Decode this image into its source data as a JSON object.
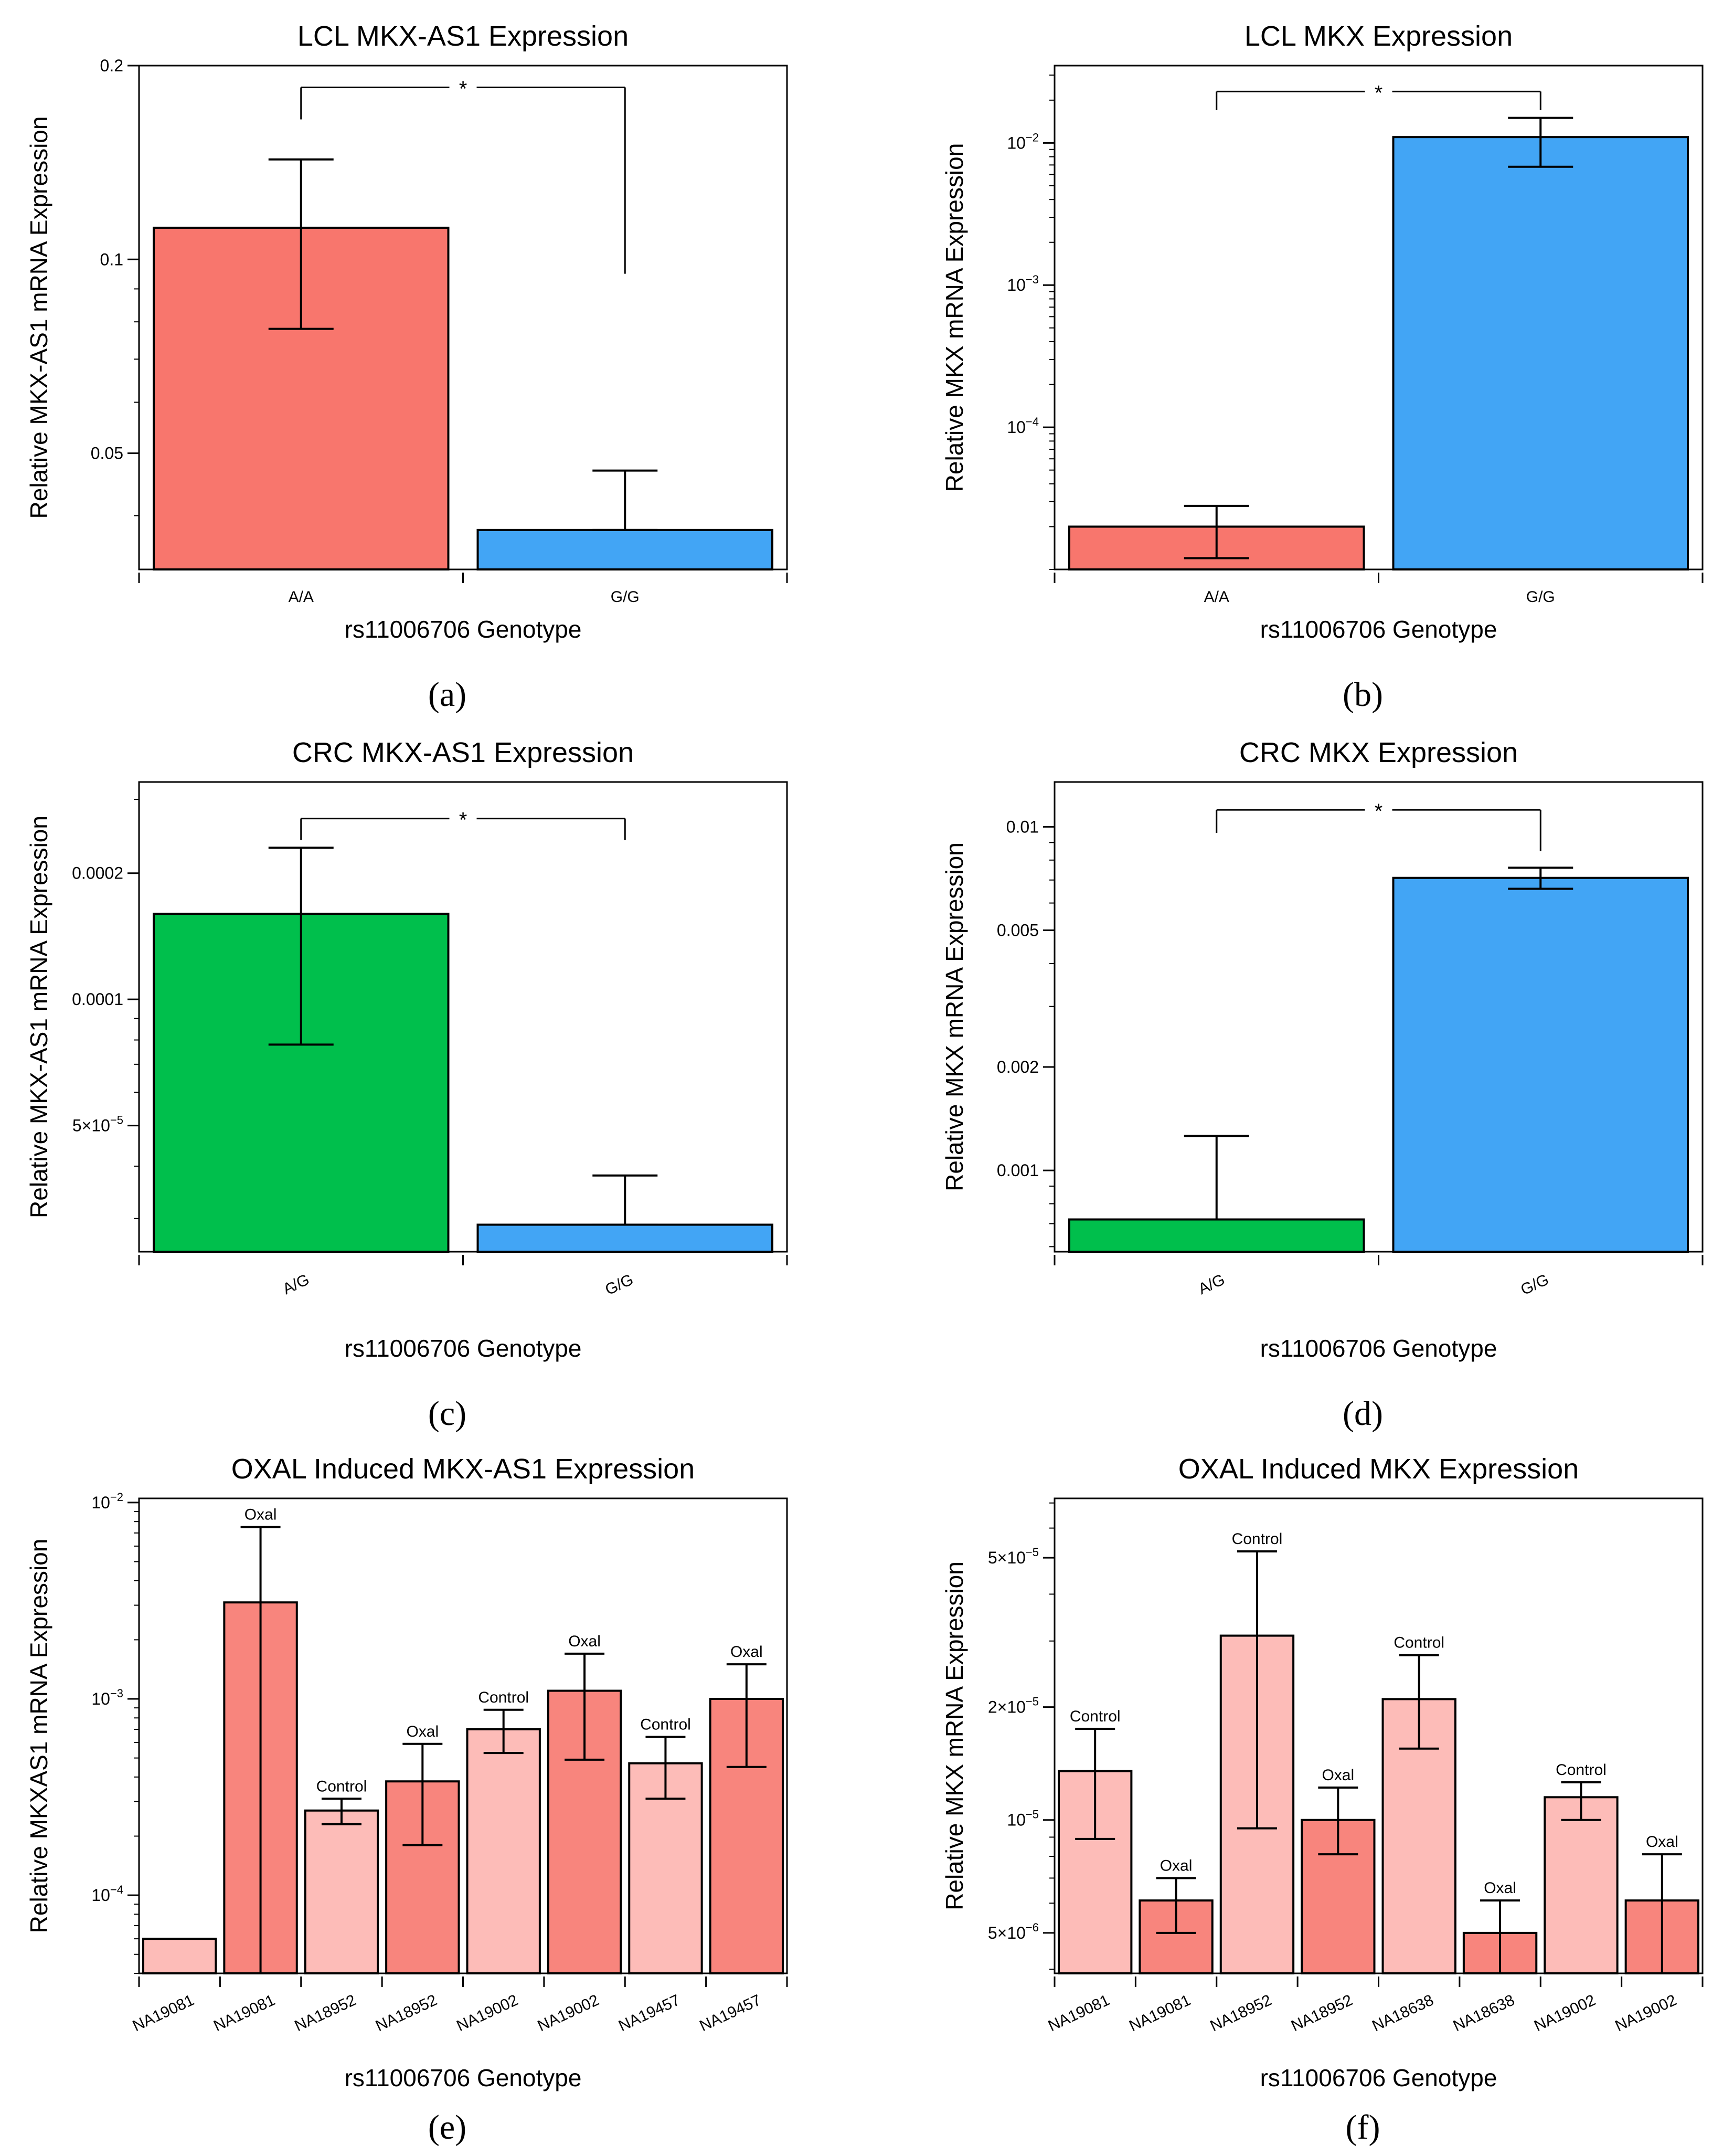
{
  "chart_data": [
    {
      "id": "a",
      "panel_label": "(a)",
      "type": "bar",
      "title": "LCL MKX-AS1 Expression",
      "ylabel": "Relative MKX-AS1 mRNA Expression",
      "xlabel": "rs11006706 Genotype",
      "yscale": "log",
      "ylim": [
        0.033,
        0.2
      ],
      "yticks": [
        {
          "v": 0.05,
          "label": "0.05"
        },
        {
          "v": 0.1,
          "label": "0.1"
        },
        {
          "v": 0.2,
          "label": "0.2"
        }
      ],
      "categories": [
        "A/A",
        "G/G"
      ],
      "values": [
        0.112,
        0.038
      ],
      "err_low": [
        0.078,
        0.038
      ],
      "err_high": [
        0.143,
        0.047
      ],
      "colors": [
        "#f8766d",
        "#42a5f5"
      ],
      "significance": {
        "from": 0,
        "to": 1,
        "label": "*",
        "y": 0.185,
        "left_end": 0.165,
        "right_end": 0.095
      }
    },
    {
      "id": "b",
      "panel_label": "(b)",
      "type": "bar",
      "title": "LCL MKX Expression",
      "ylabel": "Relative MKX mRNA Expression",
      "xlabel": "rs11006706 Genotype",
      "yscale": "log",
      "ylim": [
        1e-05,
        0.035
      ],
      "yticks": [
        {
          "v": 0.0001,
          "label": "10",
          "sup": "−4"
        },
        {
          "v": 0.001,
          "label": "10",
          "sup": "−3"
        },
        {
          "v": 0.01,
          "label": "10",
          "sup": "−2"
        }
      ],
      "categories": [
        "A/A",
        "G/G"
      ],
      "values": [
        2e-05,
        0.011
      ],
      "err_low": [
        1.2e-05,
        0.0068
      ],
      "err_high": [
        2.8e-05,
        0.015
      ],
      "colors": [
        "#f8766d",
        "#42a5f5"
      ],
      "significance": {
        "from": 0,
        "to": 1,
        "label": "*",
        "y": 0.023,
        "left_end": 0.017,
        "right_end": 0.017
      }
    },
    {
      "id": "c",
      "panel_label": "(c)",
      "type": "bar",
      "title": "CRC MKX-AS1 Expression",
      "ylabel": "Relative MKX-AS1 mRNA Expression",
      "xlabel": "rs11006706 Genotype",
      "yscale": "log",
      "ylim": [
        2.5e-05,
        0.00033
      ],
      "yticks": [
        {
          "v": 5e-05,
          "label": "5×10",
          "sup": "−5"
        },
        {
          "v": 0.0001,
          "label": "0.0001"
        },
        {
          "v": 0.0002,
          "label": "0.0002"
        }
      ],
      "categories": [
        "A/G",
        "G/G"
      ],
      "values": [
        0.00016,
        2.9e-05
      ],
      "err_low": [
        7.8e-05,
        2.9e-05
      ],
      "err_high": [
        0.00023,
        3.8e-05
      ],
      "colors": [
        "#00bf4c",
        "#42a5f5"
      ],
      "significance": {
        "from": 0,
        "to": 1,
        "label": "*",
        "y": 0.00027,
        "left_end": 0.00024,
        "right_end": 0.00024
      }
    },
    {
      "id": "d",
      "panel_label": "(d)",
      "type": "bar",
      "title": "CRC MKX Expression",
      "ylabel": "Relative MKX mRNA Expression",
      "xlabel": "rs11006706 Genotype",
      "yscale": "log",
      "ylim": [
        0.00058,
        0.0135
      ],
      "yticks": [
        {
          "v": 0.001,
          "label": "0.001"
        },
        {
          "v": 0.002,
          "label": "0.002"
        },
        {
          "v": 0.005,
          "label": "0.005"
        },
        {
          "v": 0.01,
          "label": "0.01"
        }
      ],
      "categories": [
        "A/G",
        "G/G"
      ],
      "values": [
        0.00072,
        0.0071
      ],
      "err_low": [
        0.00072,
        0.0066
      ],
      "err_high": [
        0.00126,
        0.0076
      ],
      "colors": [
        "#00bf4c",
        "#42a5f5"
      ],
      "significance": {
        "from": 0,
        "to": 1,
        "label": "*",
        "y": 0.0112,
        "left_end": 0.0096,
        "right_end": 0.0085
      }
    },
    {
      "id": "e",
      "panel_label": "(e)",
      "type": "bar",
      "title": "OXAL Induced MKX-AS1 Expression",
      "ylabel": "Relative MKXAS1 mRNA Expression",
      "xlabel": "rs11006706 Genotype",
      "yscale": "log",
      "ylim": [
        4e-05,
        0.0105
      ],
      "yticks": [
        {
          "v": 0.0001,
          "label": "10",
          "sup": "−4"
        },
        {
          "v": 0.001,
          "label": "10",
          "sup": "−3"
        },
        {
          "v": 0.01,
          "label": "10",
          "sup": "−2"
        }
      ],
      "categories": [
        "NA19081",
        "NA19081",
        "NA18952",
        "NA18952",
        "NA19002",
        "NA19002",
        "NA19457",
        "NA19457"
      ],
      "values": [
        6e-05,
        0.0031,
        0.00027,
        0.00038,
        0.0007,
        0.0011,
        0.00047,
        0.001
      ],
      "err_low": [
        null,
        4e-05,
        0.00023,
        0.00018,
        0.00053,
        0.00049,
        0.00031,
        0.00045
      ],
      "err_high": [
        null,
        0.0075,
        0.00031,
        0.00059,
        0.00088,
        0.0017,
        0.00064,
        0.0015
      ],
      "bar_labels": [
        "",
        "Oxal",
        "Control",
        "Oxal",
        "Control",
        "Oxal",
        "Control",
        "Oxal"
      ],
      "colors": [
        "#fdbcb8",
        "#f8857d",
        "#fdbcb8",
        "#f8857d",
        "#fdbcb8",
        "#f8857d",
        "#fdbcb8",
        "#f8857d"
      ]
    },
    {
      "id": "f",
      "panel_label": "(f)",
      "type": "bar",
      "title": "OXAL Induced MKX Expression",
      "ylabel": "Relative MKX mRNA Expression",
      "xlabel": "rs11006706 Genotype",
      "yscale": "log",
      "ylim": [
        3.9e-06,
        7.2e-05
      ],
      "yticks": [
        {
          "v": 5e-06,
          "label": "5×10",
          "sup": "−6"
        },
        {
          "v": 1e-05,
          "label": "10",
          "sup": "−5"
        },
        {
          "v": 2e-05,
          "label": "2×10",
          "sup": "−5"
        },
        {
          "v": 5e-05,
          "label": "5×10",
          "sup": "−5"
        }
      ],
      "categories": [
        "NA19081",
        "NA19081",
        "NA18952",
        "NA18952",
        "NA18638",
        "NA18638",
        "NA19002",
        "NA19002"
      ],
      "values": [
        1.35e-05,
        6.1e-06,
        3.1e-05,
        1e-05,
        2.1e-05,
        5e-06,
        1.15e-05,
        6.1e-06
      ],
      "err_low": [
        8.9e-06,
        5e-06,
        9.5e-06,
        8.1e-06,
        1.55e-05,
        3.9e-06,
        1e-05,
        3.9e-06
      ],
      "err_high": [
        1.75e-05,
        7e-06,
        5.2e-05,
        1.22e-05,
        2.75e-05,
        6.1e-06,
        1.26e-05,
        8.1e-06
      ],
      "bar_labels": [
        "Control",
        "Oxal",
        "Control",
        "Oxal",
        "Control",
        "Oxal",
        "Control",
        "Oxal"
      ],
      "colors": [
        "#fdbcb8",
        "#f8857d",
        "#fdbcb8",
        "#f8857d",
        "#fdbcb8",
        "#f8857d",
        "#fdbcb8",
        "#f8857d"
      ]
    }
  ]
}
